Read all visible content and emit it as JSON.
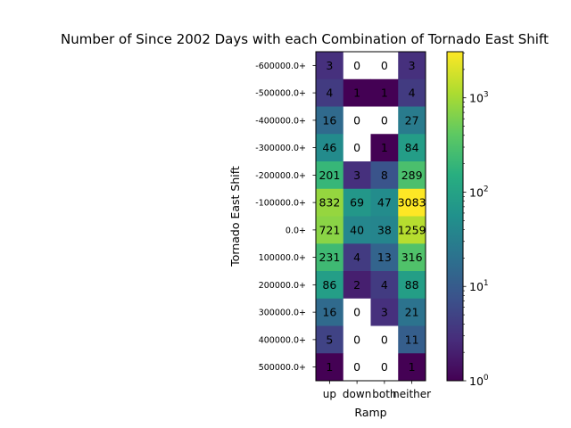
{
  "chart_data": {
    "type": "heatmap",
    "title": "Number of Since 2002 Days with each Combination of Tornado East Shift",
    "xlabel": "Ramp",
    "ylabel": "Tornado East Shift",
    "x_categories": [
      "up",
      "down",
      "both",
      "neither"
    ],
    "y_categories": [
      "-600000.0+",
      "-500000.0+",
      "-400000.0+",
      "-300000.0+",
      "-200000.0+",
      "-100000.0+",
      "0.0+",
      "100000.0+",
      "200000.0+",
      "300000.0+",
      "400000.0+",
      "500000.0+"
    ],
    "values": [
      [
        3,
        0,
        0,
        3
      ],
      [
        4,
        1,
        1,
        4
      ],
      [
        16,
        0,
        0,
        27
      ],
      [
        46,
        0,
        1,
        84
      ],
      [
        201,
        3,
        8,
        289
      ],
      [
        832,
        69,
        47,
        3083
      ],
      [
        721,
        40,
        38,
        1259
      ],
      [
        231,
        4,
        13,
        316
      ],
      [
        86,
        2,
        4,
        88
      ],
      [
        16,
        0,
        3,
        21
      ],
      [
        5,
        0,
        0,
        11
      ],
      [
        1,
        0,
        0,
        1
      ]
    ],
    "colorbar": {
      "scale": "log",
      "colormap": "viridis",
      "range": [
        1,
        3083
      ],
      "tick_values": [
        1,
        10,
        100,
        1000
      ],
      "tick_labels": [
        {
          "base": "10",
          "exp": "0"
        },
        {
          "base": "10",
          "exp": "1"
        },
        {
          "base": "10",
          "exp": "2"
        },
        {
          "base": "10",
          "exp": "3"
        }
      ]
    },
    "zero_color": "#ffffff",
    "grid": false
  }
}
